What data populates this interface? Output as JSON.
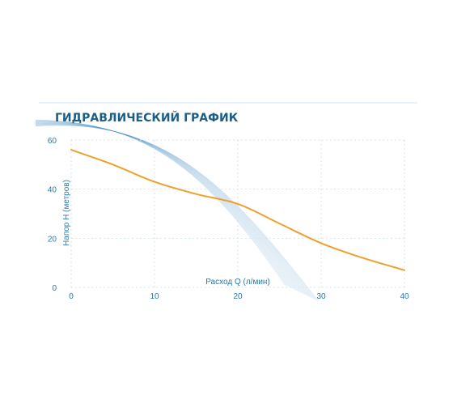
{
  "chart_data": {
    "type": "line",
    "title": "ГИДРАВЛИЧЕСКИЙ ГРАФИК",
    "xlabel": "Расход Q (л/мин)",
    "ylabel": "Напор H (метров)",
    "xlim": [
      0,
      40
    ],
    "ylim": [
      0,
      60
    ],
    "x_ticks": [
      "0",
      "10",
      "20",
      "30",
      "40"
    ],
    "y_ticks": [
      "0",
      "20",
      "40",
      "60"
    ],
    "grid": true,
    "series": [
      {
        "x": [
          0,
          5,
          10,
          15,
          20,
          25,
          30,
          35,
          40
        ],
        "y": [
          56,
          50,
          43,
          38,
          34,
          26,
          18,
          12,
          7
        ]
      }
    ],
    "colors": {
      "line": "#f0a02a",
      "title": "#1b5e86",
      "axis": "#2b78a8",
      "grid": "#d6e6f0",
      "decor": "#4a8fc4"
    }
  }
}
